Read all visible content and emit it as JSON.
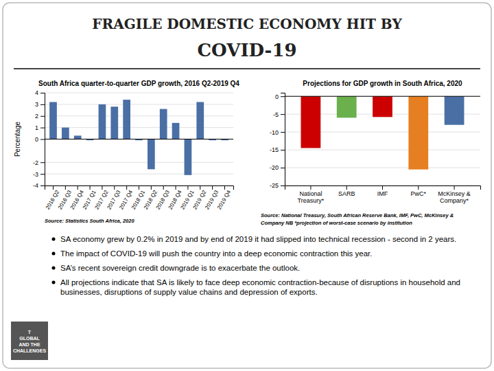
{
  "title": "FRAGILE DOMESTIC ECONOMY HIT BY",
  "subtitle": "COVID-19",
  "annotations": [
    "SA economy grew by 0.2% in 2019 and by end of 2019 it had slipped into technical recession - second in 2 years.",
    "The impact of COVID-19 will push the country into a deep economic contraction this year.",
    "SA’s recent sovereign credit downgrade is to exacerbate the outlook.",
    "All projections indicate that SA is likely to face deep economic contraction-because of disruptions in household and businesses, disruptions of supply value chains and depression of exports.",
    "T\nGLOBAL\nAND THE\nCHALLENGES"
  ],
  "chart_data": [
    {
      "type": "bar",
      "title": "South Africa quarter-to-quarter GDP growth, 2016 Q2-2019 Q4",
      "ylabel": "Percentage",
      "annotations": [
        "Source: Statistics South Africa, 2020"
      ],
      "categories": [
        "2016 Q2",
        "2016 Q3",
        "2016 Q4",
        "2017 Q1",
        "2017 Q2",
        "2017 Q3",
        "2017 Q4",
        "2018 Q1",
        "2018 Q2",
        "2018 Q3",
        "2018 Q4",
        "2019 Q1",
        "2019 Q2",
        "2019 Q3",
        "2019 Q4"
      ],
      "values": [
        3.2,
        1.0,
        0.3,
        -0.1,
        3.0,
        2.8,
        3.4,
        -0.1,
        -2.6,
        2.6,
        1.4,
        -3.1,
        3.2,
        -0.1,
        -0.1
      ],
      "color": "#4a6fa5",
      "ylim": [
        -4,
        4
      ],
      "yticks": [
        -4,
        -3,
        -2,
        0,
        1,
        2,
        3,
        4
      ],
      "grid": true
    },
    {
      "type": "bar",
      "title": "Projections for GDP growth in South Africa, 2020",
      "annotations": [
        "Source: National Treasury, South African Reserve Bank, IMF, PwC, McKinsey &",
        "Company NB *projection of worst-case scenario by institution"
      ],
      "categories": [
        "National\nTreasury*",
        "SARB",
        "IMF",
        "PwC*",
        "McKinsey &\nCompany*"
      ],
      "values": [
        -14.5,
        -6.0,
        -5.8,
        -20.5,
        -8.0
      ],
      "colors": [
        "#cc0000",
        "#6ab04c",
        "#cc0000",
        "#e67e22",
        "#4a6fa5"
      ],
      "ylim": [
        -25,
        1
      ],
      "yticks": [
        0,
        -5,
        -10,
        -15,
        -20,
        -25
      ],
      "grid": true
    }
  ]
}
